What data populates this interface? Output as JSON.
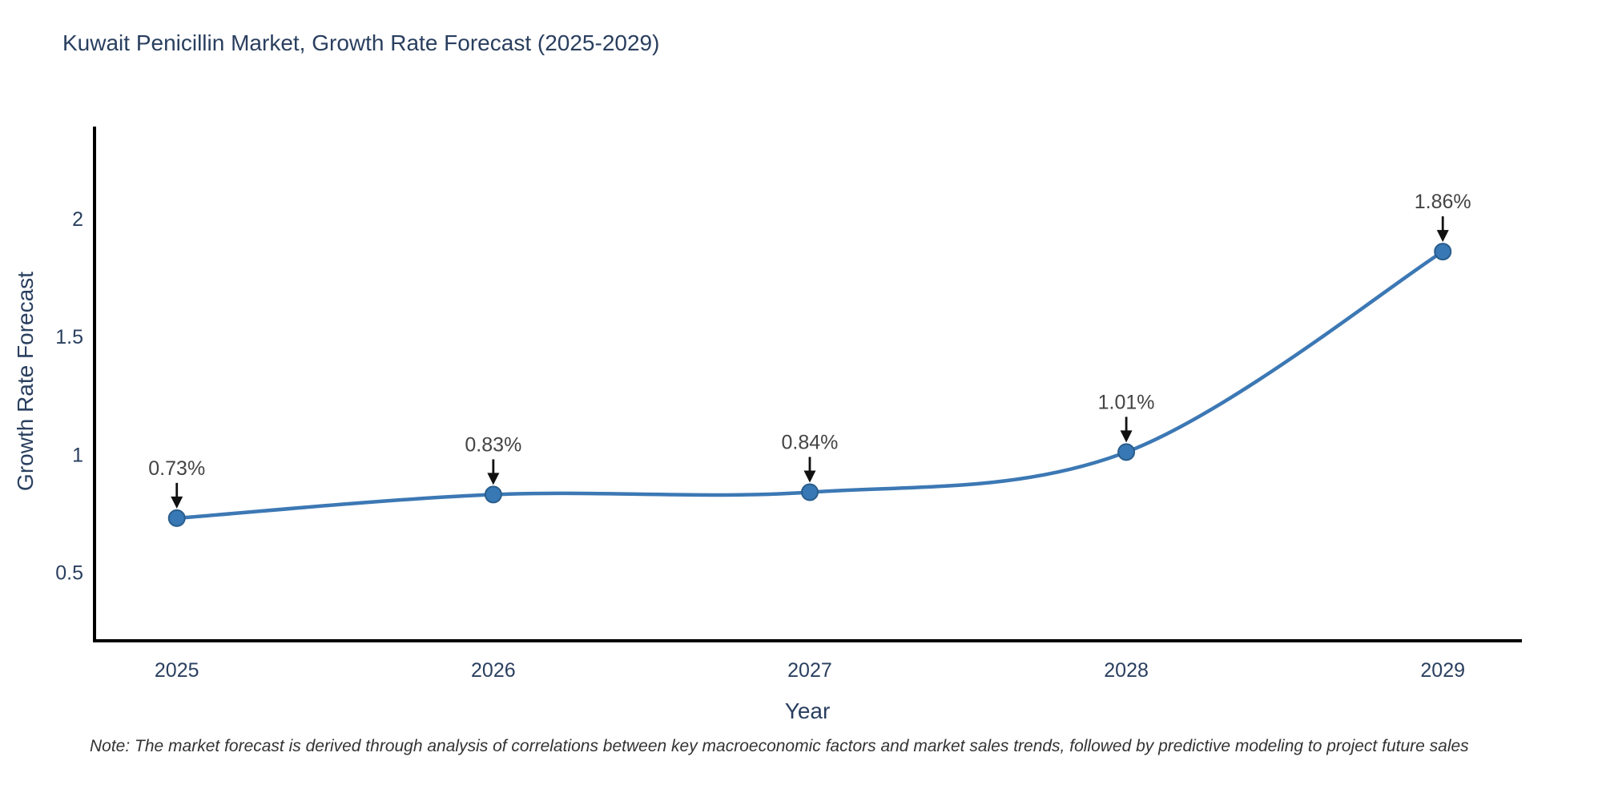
{
  "title": "Kuwait Penicillin Market, Growth Rate Forecast (2025-2029)",
  "note": "Note: The market forecast is derived through analysis of correlations between key macroeconomic factors and market sales trends, followed by predictive modeling to project future sales",
  "chart_data": {
    "type": "line",
    "title": "Kuwait Penicillin Market, Growth Rate Forecast (2025-2029)",
    "xlabel": "Year",
    "ylabel": "Growth Rate Forecast",
    "x": [
      2025,
      2026,
      2027,
      2028,
      2029
    ],
    "x_tick_labels": [
      "2025",
      "2026",
      "2027",
      "2028",
      "2029"
    ],
    "values": [
      0.73,
      0.83,
      0.84,
      1.01,
      1.86
    ],
    "point_labels": [
      "0.73%",
      "0.83%",
      "0.84%",
      "1.01%",
      "1.86%"
    ],
    "yticks": [
      0.5,
      1,
      1.5,
      2
    ],
    "ytick_labels": [
      "0.5",
      "1",
      "1.5",
      "2"
    ],
    "ylim": [
      0.21,
      2.39
    ],
    "xlim": [
      2024.74,
      2029.25
    ],
    "grid": false,
    "legend": "none",
    "line_shape": "spline",
    "colors": {
      "line": "#3c78b4",
      "marker_fill": "#3878b4",
      "marker_edge": "#2a5d8c",
      "axis": "#000000",
      "tick_text": "#2a3f5f",
      "title_text": "#2a3f5f",
      "annotation_text": "#444444",
      "annotation_arrow": "#111111"
    }
  }
}
